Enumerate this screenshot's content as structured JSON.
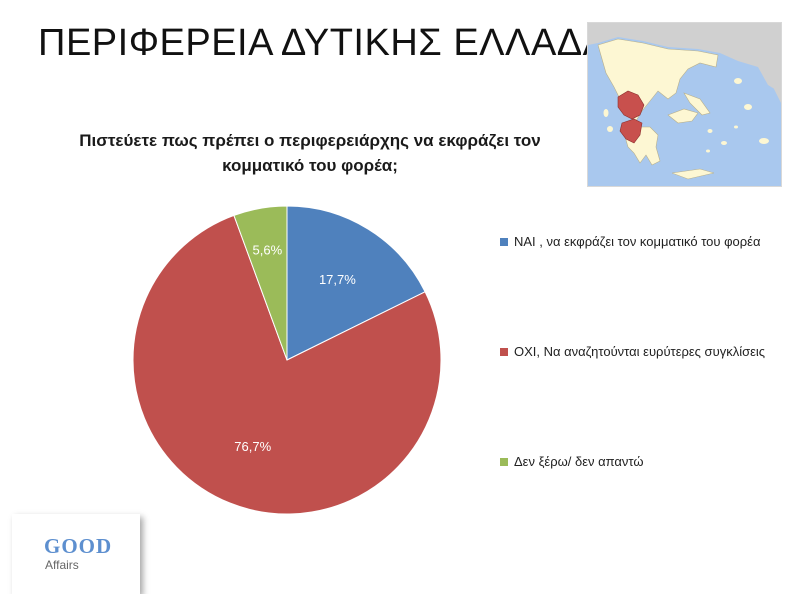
{
  "slide": {
    "title": "ΠΕΡΙΦΕΡΕΙΑ ΔΥΤΙΚΗΣ ΕΛΛΑΔΑΣ"
  },
  "logo": {
    "line1": "GOOD",
    "line2": "Affairs"
  },
  "map": {
    "sea_color": "#a9c8ee",
    "land_color": "#fdf7d3",
    "neighbor_color": "#d0d0d0",
    "highlight_color": "#c8504d"
  },
  "chart_data": {
    "type": "pie",
    "title": "Πιστεύετε πως πρέπει ο περιφερειάρχης να εκφράζει τον κομματικό του φορέα;",
    "series": [
      {
        "name": "ΝΑΙ , να εκφράζει τον κομματικό του φορέα",
        "value": 17.7,
        "label": "17,7%",
        "color": "#4f81bd"
      },
      {
        "name": "ΟΧΙ, Να αναζητούνται ευρύτερες συγκλίσεις",
        "value": 76.7,
        "label": "76,7%",
        "color": "#c0504d"
      },
      {
        "name": "Δεν ξέρω/ δεν απαντώ",
        "value": 5.6,
        "label": "5,6%",
        "color": "#9bbb59"
      }
    ],
    "start": "12 o'clock, clockwise",
    "legend": "right"
  }
}
